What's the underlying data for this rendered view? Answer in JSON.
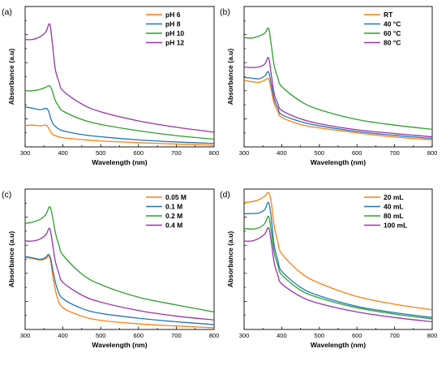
{
  "chart_data": [
    {
      "type": "line",
      "panel_label": "(a)",
      "xlabel": "Wavelength (nm)",
      "ylabel": "Absorbance (a.u)",
      "xlim": [
        300,
        800
      ],
      "ylim": [
        0,
        10
      ],
      "xticks": [
        300,
        400,
        500,
        600,
        700,
        800
      ],
      "legend_position": "top-right",
      "grid": false,
      "series": [
        {
          "name": "pH 6",
          "color": "#ff7f0e",
          "x": [
            300,
            320,
            340,
            355,
            362,
            368,
            375,
            385,
            400,
            450,
            500,
            600,
            700,
            800
          ],
          "y": [
            1.52,
            1.55,
            1.5,
            1.55,
            1.35,
            1.05,
            0.85,
            0.75,
            0.65,
            0.52,
            0.42,
            0.3,
            0.2,
            0.12
          ]
        },
        {
          "name": "pH 8",
          "color": "#1f77b4",
          "x": [
            300,
            320,
            340,
            355,
            362,
            368,
            375,
            385,
            400,
            450,
            500,
            600,
            700,
            800
          ],
          "y": [
            2.85,
            2.75,
            2.65,
            2.75,
            2.55,
            2.0,
            1.6,
            1.35,
            1.15,
            0.88,
            0.72,
            0.5,
            0.35,
            0.25
          ]
        },
        {
          "name": "pH 10",
          "color": "#2ca02c",
          "x": [
            300,
            320,
            340,
            355,
            365,
            372,
            380,
            390,
            400,
            450,
            500,
            600,
            700,
            800
          ],
          "y": [
            4.0,
            4.0,
            4.1,
            4.25,
            4.35,
            3.95,
            3.3,
            2.85,
            2.55,
            1.95,
            1.6,
            1.15,
            0.8,
            0.55
          ]
        },
        {
          "name": "pH 12",
          "color": "#9933aa",
          "x": [
            300,
            320,
            340,
            355,
            365,
            372,
            380,
            390,
            400,
            450,
            500,
            600,
            700,
            800
          ],
          "y": [
            7.65,
            7.65,
            7.85,
            8.2,
            8.75,
            7.4,
            5.5,
            4.6,
            4.0,
            3.05,
            2.5,
            1.85,
            1.4,
            1.05
          ]
        }
      ]
    },
    {
      "type": "line",
      "panel_label": "(b)",
      "xlabel": "Wavelength (nm)",
      "ylabel": "Absorbance (a.u)",
      "xlim": [
        300,
        800
      ],
      "ylim": [
        0,
        10
      ],
      "xticks": [
        300,
        400,
        500,
        600,
        700,
        800
      ],
      "legend_position": "top-right",
      "grid": false,
      "series": [
        {
          "name": "RT",
          "color": "#ff7f0e",
          "x": [
            300,
            320,
            340,
            355,
            365,
            372,
            380,
            390,
            400,
            450,
            500,
            600,
            700,
            800
          ],
          "y": [
            4.75,
            4.65,
            4.6,
            4.75,
            4.85,
            4.1,
            3.1,
            2.5,
            2.1,
            1.6,
            1.35,
            1.0,
            0.7,
            0.5
          ]
        },
        {
          "name": "40 °C",
          "color": "#1f77b4",
          "x": [
            300,
            320,
            340,
            355,
            365,
            372,
            380,
            390,
            400,
            450,
            500,
            600,
            700,
            800
          ],
          "y": [
            4.95,
            4.9,
            4.85,
            5.05,
            5.35,
            4.5,
            3.4,
            2.75,
            2.3,
            1.8,
            1.5,
            1.1,
            0.82,
            0.6
          ]
        },
        {
          "name": "60 °C",
          "color": "#2ca02c",
          "x": [
            300,
            320,
            340,
            355,
            365,
            372,
            380,
            390,
            400,
            450,
            500,
            600,
            700,
            800
          ],
          "y": [
            7.8,
            7.75,
            7.9,
            8.1,
            8.45,
            7.3,
            5.8,
            4.9,
            4.3,
            3.25,
            2.65,
            1.95,
            1.55,
            1.25
          ]
        },
        {
          "name": "80 °C",
          "color": "#9933aa",
          "x": [
            300,
            320,
            340,
            355,
            365,
            372,
            380,
            390,
            400,
            450,
            500,
            600,
            700,
            800
          ],
          "y": [
            5.7,
            5.65,
            5.7,
            5.9,
            6.35,
            5.2,
            3.8,
            3.05,
            2.6,
            2.0,
            1.65,
            1.22,
            0.95,
            0.72
          ]
        }
      ]
    },
    {
      "type": "line",
      "panel_label": "(c)",
      "xlabel": "Wavelength (nm)",
      "ylabel": "Absorbance (a.u)",
      "xlim": [
        300,
        800
      ],
      "ylim": [
        0,
        10
      ],
      "xticks": [
        300,
        400,
        500,
        600,
        700,
        800
      ],
      "legend_position": "top-right",
      "grid": false,
      "series": [
        {
          "name": "0.05 M",
          "color": "#ff7f0e",
          "x": [
            300,
            320,
            340,
            355,
            362,
            368,
            375,
            385,
            400,
            450,
            500,
            600,
            700,
            800
          ],
          "y": [
            5.15,
            5.05,
            4.95,
            5.05,
            5.25,
            4.8,
            3.5,
            2.3,
            1.55,
            0.95,
            0.65,
            0.4,
            0.25,
            0.12
          ]
        },
        {
          "name": "0.1 M",
          "color": "#1f77b4",
          "x": [
            300,
            320,
            340,
            355,
            362,
            368,
            375,
            385,
            400,
            450,
            500,
            600,
            700,
            800
          ],
          "y": [
            5.2,
            5.1,
            5.0,
            5.15,
            5.35,
            5.0,
            4.0,
            2.9,
            2.2,
            1.5,
            1.15,
            0.8,
            0.55,
            0.35
          ]
        },
        {
          "name": "0.2 M",
          "color": "#2ca02c",
          "x": [
            300,
            320,
            340,
            355,
            365,
            372,
            380,
            390,
            400,
            450,
            500,
            600,
            700,
            800
          ],
          "y": [
            7.55,
            7.65,
            7.85,
            8.2,
            8.75,
            8.1,
            6.9,
            5.95,
            5.3,
            3.95,
            3.2,
            2.3,
            1.75,
            1.25
          ]
        },
        {
          "name": "0.4 M",
          "color": "#9933aa",
          "x": [
            300,
            320,
            340,
            355,
            365,
            372,
            380,
            390,
            400,
            450,
            500,
            600,
            700,
            800
          ],
          "y": [
            6.3,
            6.3,
            6.45,
            6.75,
            7.2,
            6.2,
            4.85,
            3.95,
            3.35,
            2.45,
            1.95,
            1.35,
            0.95,
            0.68
          ]
        }
      ]
    },
    {
      "type": "line",
      "panel_label": "(d)",
      "xlabel": "Wavelength (nm)",
      "ylabel": "Absorbance (a.u)",
      "xlim": [
        300,
        800
      ],
      "ylim": [
        0,
        10
      ],
      "xticks": [
        300,
        400,
        500,
        600,
        700,
        800
      ],
      "legend_position": "top-right",
      "grid": false,
      "series": [
        {
          "name": "20 mL",
          "color": "#ff7f0e",
          "x": [
            300,
            320,
            340,
            355,
            365,
            372,
            380,
            390,
            400,
            450,
            500,
            600,
            700,
            800
          ],
          "y": [
            9.05,
            9.1,
            9.25,
            9.5,
            9.75,
            9.1,
            7.4,
            6.2,
            5.4,
            4.05,
            3.3,
            2.35,
            1.8,
            1.4
          ]
        },
        {
          "name": "40 mL",
          "color": "#1f77b4",
          "x": [
            300,
            320,
            340,
            355,
            365,
            372,
            380,
            390,
            400,
            450,
            500,
            600,
            700,
            800
          ],
          "y": [
            8.25,
            8.25,
            8.3,
            8.55,
            9.05,
            8.0,
            6.0,
            4.9,
            4.15,
            3.0,
            2.4,
            1.65,
            1.2,
            0.85
          ]
        },
        {
          "name": "80 mL",
          "color": "#2ca02c",
          "x": [
            300,
            320,
            340,
            355,
            365,
            372,
            380,
            390,
            400,
            450,
            500,
            600,
            700,
            800
          ],
          "y": [
            7.2,
            7.15,
            7.25,
            7.55,
            8.05,
            7.05,
            5.5,
            4.55,
            3.9,
            2.8,
            2.25,
            1.55,
            1.1,
            0.75
          ]
        },
        {
          "name": "100 mL",
          "color": "#9933aa",
          "x": [
            300,
            320,
            340,
            355,
            365,
            372,
            380,
            390,
            400,
            450,
            500,
            600,
            700,
            800
          ],
          "y": [
            6.3,
            6.3,
            6.5,
            6.8,
            7.25,
            6.3,
            4.75,
            3.85,
            3.25,
            2.35,
            1.85,
            1.25,
            0.85,
            0.55
          ]
        }
      ]
    }
  ]
}
